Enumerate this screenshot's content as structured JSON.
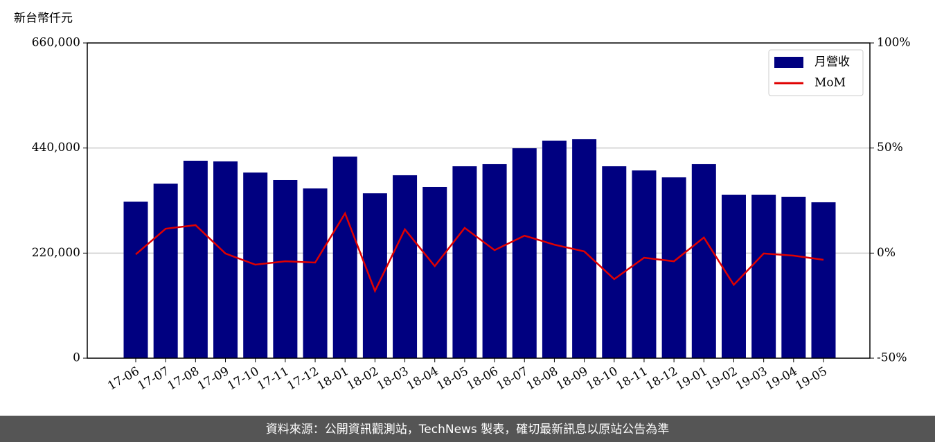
{
  "chart_data": {
    "type": "bar",
    "y_label": "新台幣仟元",
    "footer": "資料來源：公開資訊觀測站，TechNews 製表，確切最新訊息以原站公告為準",
    "categories": [
      "17-06",
      "17-07",
      "17-08",
      "17-09",
      "17-10",
      "17-11",
      "17-12",
      "18-01",
      "18-02",
      "18-03",
      "18-04",
      "18-05",
      "18-06",
      "18-07",
      "18-08",
      "18-09",
      "18-10",
      "18-11",
      "18-12",
      "19-01",
      "19-02",
      "19-03",
      "19-04",
      "19-05"
    ],
    "series": [
      {
        "name": "月營收",
        "type": "bar",
        "color": "#000080",
        "values": [
          327800,
          365500,
          413400,
          412000,
          388700,
          372800,
          355400,
          422100,
          345200,
          383000,
          358300,
          401800,
          406200,
          439500,
          455500,
          458400,
          401800,
          393100,
          378600,
          406200,
          342300,
          342300,
          338000,
          326400
        ]
      },
      {
        "name": "MoM",
        "type": "line",
        "axis": "y2",
        "color": "#e00000",
        "values": [
          -0.6,
          11.6,
          13.3,
          -0.2,
          -5.5,
          -3.9,
          -4.5,
          18.9,
          -18.0,
          11.3,
          -6.2,
          12.0,
          1.4,
          8.3,
          4.0,
          0.8,
          -12.4,
          -2.2,
          -3.9,
          7.4,
          -15.1,
          -0.2,
          -1.2,
          -3.2
        ]
      }
    ],
    "ylim": [
      0,
      660000
    ],
    "yticks": [
      0,
      {
        "value": 220000,
        "label": "220,000"
      },
      {
        "value": 440000,
        "label": "440,000"
      },
      {
        "value": 660000,
        "label": "660,000"
      }
    ],
    "y2lim": [
      -50,
      100
    ],
    "y2ticks": [
      {
        "value": -50,
        "label": "-50%"
      },
      {
        "value": 0,
        "label": "0%"
      },
      {
        "value": 50,
        "label": "50%"
      },
      {
        "value": 100,
        "label": "100%"
      }
    ],
    "grid": true,
    "legend": "upper right"
  }
}
